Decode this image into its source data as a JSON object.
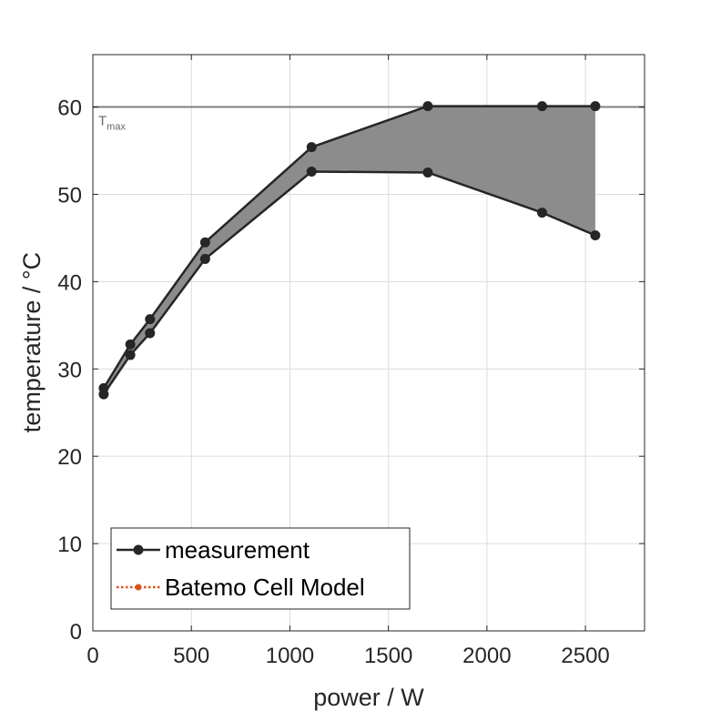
{
  "chart_data": {
    "type": "line",
    "title": "",
    "xlabel": "power / W",
    "ylabel": "temperature / °C",
    "xlim": [
      0,
      2800
    ],
    "ylim": [
      0,
      66
    ],
    "xticks": [
      0,
      500,
      1000,
      1500,
      2000,
      2500
    ],
    "yticks": [
      0,
      10,
      20,
      30,
      40,
      50,
      60
    ],
    "x_tick_labels": [
      "0",
      "500",
      "1000",
      "1500",
      "2000",
      "2500"
    ],
    "y_tick_labels": [
      "0",
      "10",
      "20",
      "30",
      "40",
      "50",
      "60"
    ],
    "grid": true,
    "legend_position": "bottom-left",
    "reference_line": {
      "y": 60,
      "label_main": "T",
      "label_sub": "max",
      "color": "#7f7f7f"
    },
    "series": [
      {
        "name": "measurement",
        "role": "upper",
        "color": "#262626",
        "marker": "circle",
        "x": [
          55,
          190,
          290,
          570,
          1110,
          1700,
          2280,
          2550
        ],
        "y": [
          27.8,
          32.8,
          35.7,
          44.5,
          55.4,
          60.1,
          60.1,
          60.1
        ]
      },
      {
        "name": "measurement",
        "role": "lower",
        "color": "#262626",
        "marker": "circle",
        "x": [
          55,
          190,
          290,
          570,
          1110,
          1700,
          2280,
          2550
        ],
        "y": [
          27.1,
          31.6,
          34.1,
          42.6,
          52.6,
          52.5,
          47.9,
          45.3
        ]
      },
      {
        "name": "Batemo Cell Model",
        "color": "#d95319",
        "marker": "circle",
        "linestyle": "dotted",
        "x": [],
        "y": []
      }
    ],
    "band_fill_color": "#8c8c8c",
    "legend": [
      {
        "label": "measurement",
        "color": "#262626",
        "linestyle": "solid"
      },
      {
        "label": "Batemo Cell Model",
        "color": "#d95319",
        "linestyle": "dotted"
      }
    ]
  }
}
